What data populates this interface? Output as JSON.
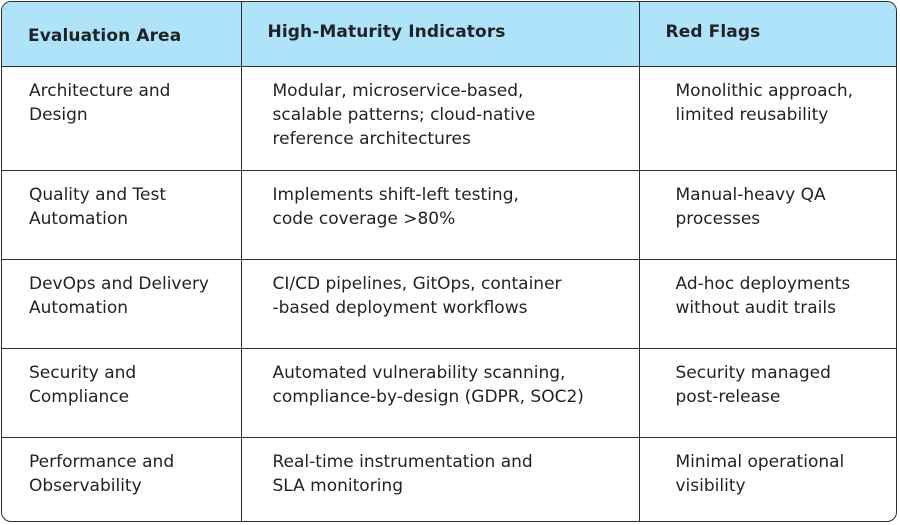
{
  "table": {
    "headers": [
      "Evaluation Area",
      "High-Maturity Indicators",
      "Red Flags"
    ],
    "rows": [
      {
        "area": "Architecture and\nDesign",
        "indicators": "Modular, microservice-based,\nscalable patterns; cloud-native\nreference architectures",
        "red_flags": "Monolithic approach,\nlimited reusability"
      },
      {
        "area": "Quality and Test\nAutomation",
        "indicators": "Implements shift-left testing,\ncode coverage >80%",
        "red_flags": "Manual-heavy QA\nprocesses"
      },
      {
        "area": "DevOps and Delivery\nAutomation",
        "indicators": "CI/CD pipelines, GitOps, container\n-based deployment workflows",
        "red_flags": "Ad-hoc deployments\nwithout audit trails"
      },
      {
        "area": "Security and\nCompliance",
        "indicators": "Automated vulnerability scanning,\ncompliance-by-design (GDPR, SOC2)",
        "red_flags": "Security managed\npost-release"
      },
      {
        "area": "Performance and\nObservability",
        "indicators": "Real-time instrumentation and\nSLA monitoring",
        "red_flags": "Minimal operational\nvisibility"
      }
    ]
  }
}
